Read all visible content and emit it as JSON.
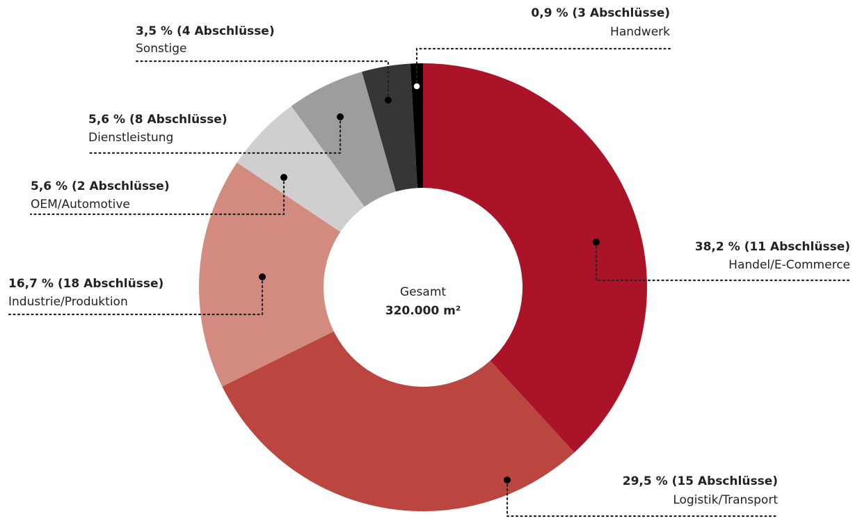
{
  "chart_data": {
    "type": "donut",
    "categories": [
      "Handel/E-Commerce",
      "Logistik/Transport",
      "Industrie/Produktion",
      "OEM/Automotive",
      "Dienstleistung",
      "Sonstige",
      "Handwerk"
    ],
    "values": [
      38.2,
      29.5,
      16.7,
      5.6,
      5.6,
      3.5,
      0.9
    ],
    "value_labels": [
      "38,2 % (11 Abschlüsse)",
      "29,5 % (15 Abschlüsse)",
      "16,7 % (18 Abschlüsse)",
      "5,6 % (2 Abschlüsse)",
      "5,6 % (8 Abschlüsse)",
      "3,5 % (4 Abschlüsse)",
      "0,9 % (3 Abschlüsse)"
    ],
    "colors": [
      "#ab1428",
      "#bb4640",
      "#d48b7f",
      "#cfcfcf",
      "#9d9d9c",
      "#363636",
      "#000000"
    ],
    "center_label": "Gesamt",
    "center_value": "320.000 m²"
  }
}
